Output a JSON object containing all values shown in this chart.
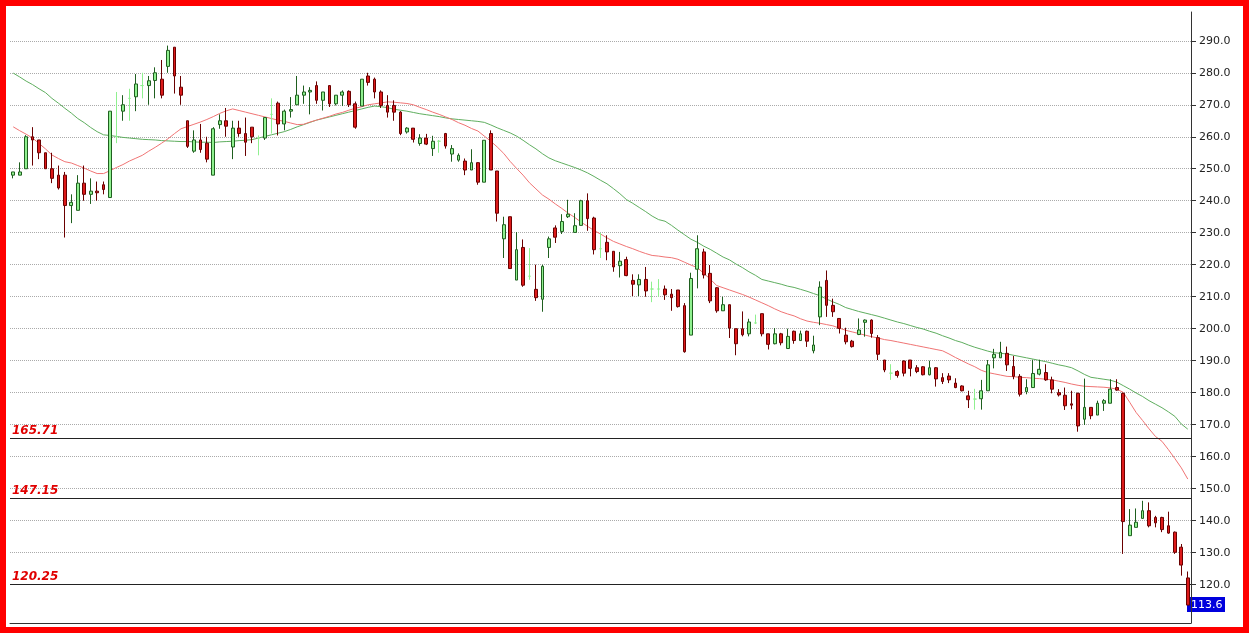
{
  "chart_data": {
    "type": "candlestick",
    "categories": [
      null,
      null,
      null,
      null,
      null,
      null,
      null,
      null,
      null,
      null,
      null,
      null,
      null,
      null,
      null,
      null,
      null,
      null,
      null,
      null,
      null,
      null,
      null,
      null,
      null,
      null,
      null,
      null,
      null,
      null,
      null,
      null,
      null,
      null,
      null,
      null,
      null,
      null,
      null,
      null,
      null,
      null,
      null,
      null,
      null,
      null,
      null,
      null,
      null,
      null,
      null,
      null,
      null,
      null,
      null,
      null,
      null,
      null,
      null,
      null,
      null,
      null,
      null,
      null,
      null,
      null,
      null,
      null,
      null,
      null,
      null,
      null,
      null,
      null,
      null,
      null,
      null,
      null,
      null,
      null,
      null,
      null,
      null,
      null,
      null,
      null,
      null,
      null,
      null,
      null,
      null,
      null,
      null,
      null,
      null,
      null,
      null,
      null,
      null,
      null,
      null,
      null,
      null,
      null,
      null,
      null,
      null,
      null,
      null,
      null,
      null,
      null,
      null,
      null,
      null,
      null,
      null,
      null,
      null,
      null,
      null,
      null,
      null,
      null,
      null,
      null,
      null,
      null,
      null,
      null,
      null,
      null,
      null,
      null,
      null,
      null,
      null,
      null,
      null,
      null,
      null,
      null,
      null,
      null,
      null,
      null,
      null,
      null,
      null,
      null,
      null,
      null,
      null,
      null,
      null,
      null,
      null,
      null,
      null,
      null,
      null,
      null,
      null,
      null,
      null,
      null,
      null,
      null,
      null,
      null,
      null,
      null,
      null,
      null,
      null,
      null,
      null,
      null,
      null,
      null,
      null,
      null,
      null
    ],
    "series": [
      {
        "type": "line",
        "color": "#5fae5f",
        "values": [
          279.9,
          278.7,
          277.4,
          276.3,
          275,
          273.8,
          272,
          270.5,
          268.9,
          267.4,
          265.7,
          264.4,
          262.9,
          261.6,
          260.6,
          260.4,
          260.1,
          259.8,
          259.6,
          259.4,
          259.2,
          259.1,
          259,
          258.8,
          258.7,
          258.6,
          258.5,
          258.5,
          258.4,
          258.3,
          258.3,
          258.2,
          258.4,
          258.5,
          258.6,
          258.8,
          258.9,
          259.1,
          259.6,
          260.1,
          260.6,
          261.1,
          261.6,
          262.3,
          263.1,
          263.8,
          264.5,
          265.2,
          265.7,
          266.2,
          266.7,
          267.2,
          267.7,
          268.2,
          268.7,
          269.2,
          269.6,
          269.4,
          269.1,
          268.6,
          268.3,
          268,
          267.6,
          267.2,
          266.9,
          266.6,
          266.3,
          265.9,
          265.6,
          265.4,
          265.2,
          265,
          264.8,
          264.5,
          263.7,
          262.8,
          262,
          261.2,
          260.2,
          258.9,
          257.5,
          256.2,
          254.7,
          253.4,
          252.5,
          251.8,
          251.1,
          250.4,
          249.6,
          248.7,
          247.6,
          246.4,
          245.3,
          243.8,
          242.2,
          240.4,
          239.2,
          237.9,
          236.6,
          235.2,
          234.1,
          233.6,
          232.3,
          230.8,
          229.4,
          228,
          227,
          225.8,
          224.8,
          223.6,
          222.4,
          221.5,
          220.2,
          219.1,
          217.8,
          216.7,
          215.4,
          214.9,
          214.4,
          213.9,
          213.3,
          212.9,
          212.3,
          211.7,
          211,
          210.3,
          209.3,
          208.4,
          207.6,
          206.6,
          206,
          205.4,
          204.9,
          204.4,
          203.9,
          203.3,
          202.7,
          202.1,
          201.6,
          201,
          200.4,
          199.9,
          199.2,
          198.6,
          197.8,
          197.1,
          196.3,
          195.7,
          194.9,
          194.2,
          193.6,
          193,
          192.5,
          192.3,
          192.1,
          191.7,
          191.3,
          190.9,
          190.5,
          190.1,
          189.7,
          189.2,
          188.7,
          188.3,
          187.8,
          186.8,
          185.7,
          184.8,
          184.5,
          184.2,
          183.9,
          183.3,
          182.2,
          181.1,
          179.9,
          178.8,
          177.5,
          176.4,
          175.3,
          174,
          172.6,
          170.2,
          168.6
        ]
      },
      {
        "type": "line",
        "color": "#f07474",
        "values": [
          263.1,
          261.9,
          260.8,
          259.6,
          257.9,
          256.2,
          254.3,
          253.2,
          252.2,
          251.8,
          251,
          250.2,
          249.3,
          248.5,
          248.5,
          249.4,
          250.4,
          251.3,
          252.4,
          253.3,
          254.2,
          255.5,
          256.7,
          258,
          259.4,
          261,
          262.5,
          263.2,
          263.9,
          264.6,
          265.4,
          266.3,
          267.3,
          268.1,
          268.7,
          268.2,
          267.7,
          267.2,
          266.7,
          266.2,
          265.7,
          265.2,
          264.8,
          264.3,
          263.8,
          263.9,
          264.6,
          265.2,
          265.8,
          266.4,
          267.1,
          267.6,
          268.3,
          268.9,
          269.4,
          270,
          270.3,
          270.6,
          270.9,
          270.8,
          270.6,
          270.4,
          270,
          269.2,
          268.5,
          267.7,
          267,
          266.2,
          265.4,
          264.4,
          263.6,
          262.6,
          261.8,
          260.2,
          258.6,
          256.8,
          254.8,
          252.3,
          250.1,
          248,
          245.6,
          243.7,
          241.8,
          240.5,
          239,
          237.6,
          236.1,
          234.8,
          233.3,
          232,
          230.7,
          229.6,
          228.4,
          227.3,
          226.5,
          225.7,
          225,
          224.2,
          223.5,
          222.9,
          222.7,
          222.4,
          222.2,
          221.7,
          220.8,
          219.9,
          219.1,
          217.3,
          215.5,
          213.5,
          212.8,
          212.1,
          211.4,
          210.7,
          209.9,
          209,
          208.1,
          207.2,
          206.2,
          205.3,
          204.6,
          204,
          203.1,
          202.4,
          202,
          201.7,
          201.3,
          200.9,
          200.2,
          199.5,
          199,
          198.5,
          198,
          197.5,
          197.1,
          196.6,
          196.3,
          195.9,
          195.5,
          195.1,
          194.7,
          194.3,
          193.9,
          193.5,
          193.1,
          192.1,
          191,
          190,
          189,
          188.1,
          187,
          186.3,
          185.9,
          185.5,
          185.1,
          185,
          184.8,
          184.7,
          184.5,
          184.4,
          184.2,
          184,
          183.6,
          183.2,
          182.7,
          182.3,
          182,
          181.9,
          181.8,
          181.7,
          181.5,
          181.1,
          180.1,
          177,
          173.8,
          171.3,
          168.7,
          166.3,
          164.8,
          162.2,
          159.4,
          156.5,
          153
        ]
      },
      {
        "type": "candlestick",
        "colors": [
          "#8ff08f",
          "#8ff08f",
          "#8ff08f",
          "#dc1a1a",
          "#dc1a1a",
          "#dc1a1a",
          "#dc1a1a",
          "#dc1a1a",
          "#dc1a1a",
          "#8ff08f",
          "#8ff08f",
          "#dc1a1a",
          "#8ff08f",
          "#dc1a1a",
          "#dc1a1a",
          "#8ff08f",
          "#8ff08f",
          "#8ff08f",
          "#8ff08f",
          "#8ff08f",
          "#8ff08f",
          "#8ff08f",
          "#8ff08f",
          "#dc1a1a",
          "#8ff08f",
          "#dc1a1a",
          "#dc1a1a",
          "#dc1a1a",
          "#8ff08f",
          "#dc1a1a",
          "#dc1a1a",
          "#8ff08f",
          "#8ff08f",
          "#dc1a1a",
          "#8ff08f",
          "#dc1a1a",
          "#dc1a1a",
          "#dc1a1a",
          "#8ff08f",
          "#8ff08f",
          "#8ff08f",
          "#dc1a1a",
          "#8ff08f",
          "#8ff08f",
          "#8ff08f",
          "#8ff08f",
          "#8ff08f",
          "#dc1a1a",
          "#8ff08f",
          "#dc1a1a",
          "#8ff08f",
          "#8ff08f",
          "#dc1a1a",
          "#dc1a1a",
          "#8ff08f",
          "#dc1a1a",
          "#dc1a1a",
          "#dc1a1a",
          "#dc1a1a",
          "#dc1a1a",
          "#dc1a1a",
          "#8ff08f",
          "#dc1a1a",
          "#8ff08f",
          "#dc1a1a",
          "#8ff08f",
          "#8ff08f",
          "#dc1a1a",
          "#8ff08f",
          "#8ff08f",
          "#dc1a1a",
          "#8ff08f",
          "#dc1a1a",
          "#8ff08f",
          "#dc1a1a",
          "#dc1a1a",
          "#8ff08f",
          "#dc1a1a",
          "#8ff08f",
          "#dc1a1a",
          "#8ff08f",
          "#dc1a1a",
          "#8ff08f",
          "#8ff08f",
          "#dc1a1a",
          "#8ff08f",
          "#8ff08f",
          "#8ff08f",
          "#8ff08f",
          "#dc1a1a",
          "#dc1a1a",
          "#8ff08f",
          "#dc1a1a",
          "#dc1a1a",
          "#8ff08f",
          "#dc1a1a",
          "#dc1a1a",
          "#8ff08f",
          "#dc1a1a",
          "#8ff08f",
          "#8ff08f",
          "#dc1a1a",
          "#dc1a1a",
          "#dc1a1a",
          "#dc1a1a",
          "#8ff08f",
          "#8ff08f",
          "#dc1a1a",
          "#dc1a1a",
          "#dc1a1a",
          "#8ff08f",
          "#dc1a1a",
          "#dc1a1a",
          "#dc1a1a",
          "#8ff08f",
          "#8ff08f",
          "#dc1a1a",
          "#dc1a1a",
          "#8ff08f",
          "#dc1a1a",
          "#8ff08f",
          "#dc1a1a",
          "#8ff08f",
          "#dc1a1a",
          "#8ff08f",
          "#8ff08f",
          "#dc1a1a",
          "#dc1a1a",
          "#dc1a1a",
          "#dc1a1a",
          "#dc1a1a",
          "#8ff08f",
          "#8ff08f",
          "#dc1a1a",
          "#dc1a1a",
          "#dc1a1a",
          "#8ff08f",
          "#dc1a1a",
          "#dc1a1a",
          "#dc1a1a",
          "#dc1a1a",
          "#dc1a1a",
          "#8ff08f",
          "#dc1a1a",
          "#dc1a1a",
          "#dc1a1a",
          "#dc1a1a",
          "#dc1a1a",
          "#dc1a1a",
          "#8ff08f",
          "#8ff08f",
          "#8ff08f",
          "#8ff08f",
          "#8ff08f",
          "#dc1a1a",
          "#dc1a1a",
          "#dc1a1a",
          "#8ff08f",
          "#8ff08f",
          "#8ff08f",
          "#dc1a1a",
          "#dc1a1a",
          "#dc1a1a",
          "#dc1a1a",
          "#dc1a1a",
          "#dc1a1a",
          "#8ff08f",
          "#dc1a1a",
          "#8ff08f",
          "#8ff08f",
          "#8ff08f",
          "#dc1a1a",
          "#dc1a1a",
          "#8ff08f",
          "#8ff08f",
          "#8ff08f",
          "#dc1a1a",
          "#dc1a1a",
          "#dc1a1a",
          "#dc1a1a",
          "#dc1a1a",
          "#dc1a1a",
          "#dc1a1a"
        ],
        "ohlc": [
          [
            248,
            249,
            247,
            249
          ],
          [
            248,
            252,
            248,
            249
          ],
          [
            250,
            260.5,
            250,
            260
          ],
          [
            260,
            263,
            251,
            259
          ],
          [
            259,
            259,
            253,
            255
          ],
          [
            255,
            255,
            250,
            250
          ],
          [
            250,
            255,
            245.5,
            247
          ],
          [
            248,
            251,
            243.5,
            244
          ],
          [
            248,
            249,
            228.5,
            238.5
          ],
          [
            238.5,
            242,
            233,
            239.5
          ],
          [
            237,
            248,
            237,
            245.5
          ],
          [
            245.5,
            251,
            240,
            242
          ],
          [
            242,
            247,
            239,
            243
          ],
          [
            243,
            246,
            240,
            242.5
          ],
          [
            245,
            246,
            242,
            243.5
          ],
          [
            241,
            268,
            241,
            268
          ],
          [
            260,
            274,
            258,
            260
          ],
          [
            268,
            273,
            265,
            270
          ],
          [
            272,
            275,
            265,
            272
          ],
          [
            272.5,
            279.6,
            268,
            276.5
          ],
          [
            276,
            280,
            272,
            276
          ],
          [
            276,
            279,
            270,
            277.5
          ],
          [
            277.6,
            281.7,
            272,
            280
          ],
          [
            278,
            284,
            272,
            273
          ],
          [
            282,
            288.5,
            280,
            287
          ],
          [
            288,
            288,
            273.5,
            279
          ],
          [
            275.5,
            279,
            270,
            273
          ],
          [
            265,
            265,
            256.5,
            257
          ],
          [
            255.5,
            262,
            255,
            259
          ],
          [
            259,
            264,
            255,
            256
          ],
          [
            258,
            260,
            252,
            253
          ],
          [
            248,
            263,
            248,
            262.5
          ],
          [
            263.8,
            267,
            262.5,
            265
          ],
          [
            265,
            269,
            260,
            263.3
          ],
          [
            256.8,
            265,
            253,
            262.7
          ],
          [
            262.7,
            265,
            260,
            261
          ],
          [
            261,
            266,
            254,
            258.3
          ],
          [
            263,
            263,
            258,
            260
          ],
          [
            259.6,
            260.4,
            254.2,
            259.6
          ],
          [
            259.6,
            266,
            259,
            266
          ],
          [
            267,
            272,
            261,
            267
          ],
          [
            270.5,
            271,
            260.4,
            264
          ],
          [
            264,
            268.5,
            262,
            268
          ],
          [
            268,
            272.4,
            266,
            268.5
          ],
          [
            270,
            279,
            270,
            273
          ],
          [
            273,
            276,
            270.3,
            274
          ],
          [
            274,
            275.5,
            267,
            274.5
          ],
          [
            276,
            277.3,
            270.3,
            271.4
          ],
          [
            271.4,
            274,
            268.2,
            274
          ],
          [
            276,
            276,
            269.3,
            270.3
          ],
          [
            270.3,
            273,
            269.8,
            273
          ],
          [
            273,
            274.5,
            269.6,
            274
          ],
          [
            274.2,
            274.5,
            269.3,
            270
          ],
          [
            270.3,
            271,
            262.5,
            263
          ],
          [
            269.6,
            278,
            269.6,
            278
          ],
          [
            279,
            280,
            276,
            277
          ],
          [
            278,
            278.5,
            272,
            274
          ],
          [
            274,
            274.5,
            269,
            269.8
          ],
          [
            269.8,
            273,
            266,
            267.7
          ],
          [
            269.8,
            271.4,
            265,
            267.7
          ],
          [
            267.7,
            268,
            260.5,
            261
          ],
          [
            261.5,
            263,
            261,
            262.7
          ],
          [
            262.7,
            262.7,
            258.2,
            259.2
          ],
          [
            257.9,
            260.8,
            257.2,
            259.6
          ],
          [
            259.6,
            260.9,
            257.4,
            257.7
          ],
          [
            256.3,
            260.3,
            254,
            258.6
          ],
          [
            258.6,
            259,
            255,
            258.6
          ],
          [
            261,
            261.2,
            256.3,
            257.1
          ],
          [
            254.6,
            257.4,
            252.2,
            256.3
          ],
          [
            252.7,
            254.8,
            252.2,
            254.2
          ],
          [
            252.4,
            253.2,
            248,
            249.6
          ],
          [
            249.6,
            256.1,
            249.6,
            251.9
          ],
          [
            251.9,
            252,
            245,
            245.8
          ],
          [
            245.8,
            258.9,
            245.8,
            258.9
          ],
          [
            261,
            262,
            249.6,
            249.6
          ],
          [
            249.3,
            249.3,
            233.5,
            236.1
          ],
          [
            228.1,
            235,
            222.1,
            232.5
          ],
          [
            235,
            235,
            218.8,
            218.8
          ],
          [
            215.2,
            230.2,
            215.2,
            224.7
          ],
          [
            225.4,
            227.9,
            213.1,
            213.6
          ],
          [
            216.4,
            225.2,
            215.3,
            216.4
          ],
          [
            212.3,
            220,
            208.7,
            209.7
          ],
          [
            209.2,
            220,
            205.3,
            219.5
          ],
          [
            225.4,
            228.8,
            222.1,
            228.1
          ],
          [
            231.5,
            232.3,
            226.8,
            228.6
          ],
          [
            230.4,
            235.8,
            229.6,
            233.5
          ],
          [
            235,
            240.3,
            234.6,
            235.8
          ],
          [
            230.1,
            236.1,
            230.1,
            232.2
          ],
          [
            232.3,
            240.3,
            232.3,
            240
          ],
          [
            240,
            242.3,
            230.6,
            234.4
          ],
          [
            234.6,
            235,
            223.2,
            224.7
          ],
          [
            225,
            229.9,
            222.1,
            225
          ],
          [
            227,
            229.2,
            221.4,
            224
          ],
          [
            224.2,
            224.2,
            217.8,
            219.3
          ],
          [
            219.7,
            224,
            216,
            221.1
          ],
          [
            221.6,
            222.5,
            216.4,
            216.6
          ],
          [
            215.1,
            217,
            210.2,
            213.9
          ],
          [
            213.7,
            217,
            210.2,
            215.4
          ],
          [
            215.4,
            219.3,
            210,
            211.8
          ],
          [
            212.4,
            214.7,
            208.3,
            212.4
          ],
          [
            212.4,
            215.5,
            210,
            212.4
          ],
          [
            212.4,
            213.5,
            209,
            210.6
          ],
          [
            210.8,
            212.4,
            205.6,
            209.7
          ],
          [
            212.1,
            212.1,
            206.6,
            206.9
          ],
          [
            207.2,
            208,
            192.5,
            192.8
          ],
          [
            198,
            217.5,
            198,
            215.7
          ],
          [
            218.6,
            229.2,
            212.6,
            225
          ],
          [
            224,
            225,
            215.7,
            216.8
          ],
          [
            217.3,
            219.9,
            208,
            208.7
          ],
          [
            212.8,
            213,
            205,
            205.6
          ],
          [
            205.6,
            210,
            205.6,
            207.5
          ],
          [
            207.5,
            207.5,
            197.1,
            200.2
          ],
          [
            200,
            200,
            191.7,
            195.3
          ],
          [
            200,
            205.4,
            197.6,
            198.1
          ],
          [
            198.4,
            203.1,
            197.6,
            202.1
          ],
          [
            201.8,
            204.4,
            201.5,
            201.8
          ],
          [
            204.7,
            204.7,
            197.6,
            198.4
          ],
          [
            198.4,
            198.4,
            193.5,
            195.1
          ],
          [
            195.3,
            200.2,
            195.1,
            198.4
          ],
          [
            198.4,
            198.7,
            194.8,
            195.6
          ],
          [
            193.8,
            200,
            193.8,
            197.6
          ],
          [
            199.2,
            199.4,
            195.3,
            196.3
          ],
          [
            196.3,
            199.4,
            196.3,
            198.4
          ],
          [
            199.2,
            199.4,
            194.3,
            196.1
          ],
          [
            193.1,
            197.8,
            192.3,
            194.9
          ],
          [
            203.7,
            214.8,
            201.1,
            213
          ],
          [
            215.1,
            218.2,
            203.7,
            207.3
          ],
          [
            207.3,
            209.4,
            203.7,
            205.3
          ],
          [
            203.2,
            203.2,
            198.5,
            200.1
          ],
          [
            198,
            200.3,
            195.1,
            195.9
          ],
          [
            196.1,
            196.5,
            194.1,
            194.4
          ],
          [
            198.2,
            203.2,
            198,
            199.6
          ],
          [
            202,
            202.9,
            197.5,
            202.7
          ],
          [
            202.7,
            202.9,
            197.2,
            198.5
          ],
          [
            197.2,
            198,
            190.2,
            192
          ],
          [
            190.2,
            190.2,
            186.4,
            187.1
          ],
          [
            186.1,
            188.9,
            184,
            186.1
          ],
          [
            186.6,
            187,
            184.7,
            185.4
          ],
          [
            189.9,
            190.1,
            185.1,
            186.1
          ],
          [
            190.2,
            190.2,
            185.1,
            187.6
          ],
          [
            187.8,
            188.6,
            186.1,
            186.6
          ],
          [
            188.1,
            188.3,
            185.4,
            185.6
          ],
          [
            185.6,
            190,
            185.4,
            187.8
          ],
          [
            187.8,
            188,
            181.9,
            184.3
          ],
          [
            184.7,
            186.1,
            182.7,
            183.5
          ],
          [
            185.2,
            186.1,
            183,
            184
          ],
          [
            183,
            184.5,
            181.4,
            181.6
          ],
          [
            182.1,
            182.3,
            180.4,
            180.6
          ],
          [
            179,
            180.6,
            175.2,
            177.8
          ],
          [
            178,
            181.2,
            174.7,
            178
          ],
          [
            178.1,
            184,
            174.7,
            180.6
          ],
          [
            180.6,
            190.2,
            180.6,
            188.7
          ],
          [
            190.9,
            193.7,
            187.6,
            192
          ],
          [
            190.9,
            195.9,
            190.9,
            192.6
          ],
          [
            192.3,
            194.4,
            186.8,
            188.7
          ],
          [
            188.2,
            191.5,
            184.2,
            185.1
          ],
          [
            185.1,
            185.8,
            178.8,
            179.5
          ],
          [
            180.3,
            184.2,
            179.5,
            181.6
          ],
          [
            181.6,
            190.3,
            181.6,
            186
          ],
          [
            185.8,
            190.3,
            185.4,
            187.3
          ],
          [
            186.3,
            188.9,
            183.7,
            184
          ],
          [
            184,
            185,
            179.8,
            181.1
          ],
          [
            180,
            181.1,
            178.8,
            179.3
          ],
          [
            179.2,
            181.6,
            174.6,
            175.9
          ],
          [
            176.5,
            180.6,
            174.8,
            176.1
          ],
          [
            179.8,
            180,
            167.8,
            169.6
          ],
          [
            171.7,
            184.4,
            169.9,
            175.4
          ],
          [
            175.4,
            175.4,
            171.7,
            172.8
          ],
          [
            173,
            177.5,
            173,
            176.7
          ],
          [
            176.7,
            178,
            174.3,
            177.5
          ],
          [
            176.7,
            184.2,
            176.7,
            181.1
          ],
          [
            181.6,
            184.2,
            180.6,
            180.8
          ],
          [
            179.8,
            180,
            129.6,
            139.7
          ],
          [
            135.3,
            143.6,
            135.3,
            138.6
          ],
          [
            137.9,
            143.8,
            137.9,
            139.5
          ],
          [
            140.7,
            146.2,
            140.7,
            143.1
          ],
          [
            143.1,
            145.7,
            137.9,
            138.4
          ],
          [
            141,
            141.5,
            137.9,
            139.3
          ],
          [
            141,
            141.2,
            136.4,
            137.2
          ],
          [
            138.4,
            142.8,
            135.9,
            136.1
          ],
          [
            136.4,
            136.6,
            129.6,
            130.1
          ],
          [
            131.7,
            132.7,
            122.8,
            126.1
          ],
          [
            122.1,
            124.1,
            113.6,
            113.6
          ]
        ]
      }
    ],
    "ylim": [
      108,
      299
    ],
    "yticks": [
      {
        "value": 120,
        "label": "120.0"
      },
      {
        "value": 130,
        "label": "130.0"
      },
      {
        "value": 140,
        "label": "140.0"
      },
      {
        "value": 150,
        "label": "150.0"
      },
      {
        "value": 160,
        "label": "160.0"
      },
      {
        "value": 170,
        "label": "170.0"
      },
      {
        "value": 180,
        "label": "180.0"
      },
      {
        "value": 190,
        "label": "190.0"
      },
      {
        "value": 200,
        "label": "200.0"
      },
      {
        "value": 210,
        "label": "210.0"
      },
      {
        "value": 220,
        "label": "220.0"
      },
      {
        "value": 230,
        "label": "230.0"
      },
      {
        "value": 240,
        "label": "240.0"
      },
      {
        "value": 250,
        "label": "250.0"
      },
      {
        "value": 260,
        "label": "260.0"
      },
      {
        "value": 270,
        "label": "270.0"
      },
      {
        "value": 280,
        "label": "280.0"
      },
      {
        "value": 290,
        "label": "290.0"
      }
    ],
    "ref_lines": [
      {
        "axis": "y",
        "value": 165.71,
        "label": "165.71",
        "color": "#222222"
      },
      {
        "axis": "y",
        "value": 147.15,
        "label": "147.15",
        "color": "#222222"
      },
      {
        "axis": "y",
        "value": 120.25,
        "label": "120.25",
        "color": "#222222"
      }
    ],
    "annotations": [
      {
        "text": "113.6",
        "y": 113.6
      }
    ],
    "grid": "y",
    "tick_labels": "y"
  }
}
